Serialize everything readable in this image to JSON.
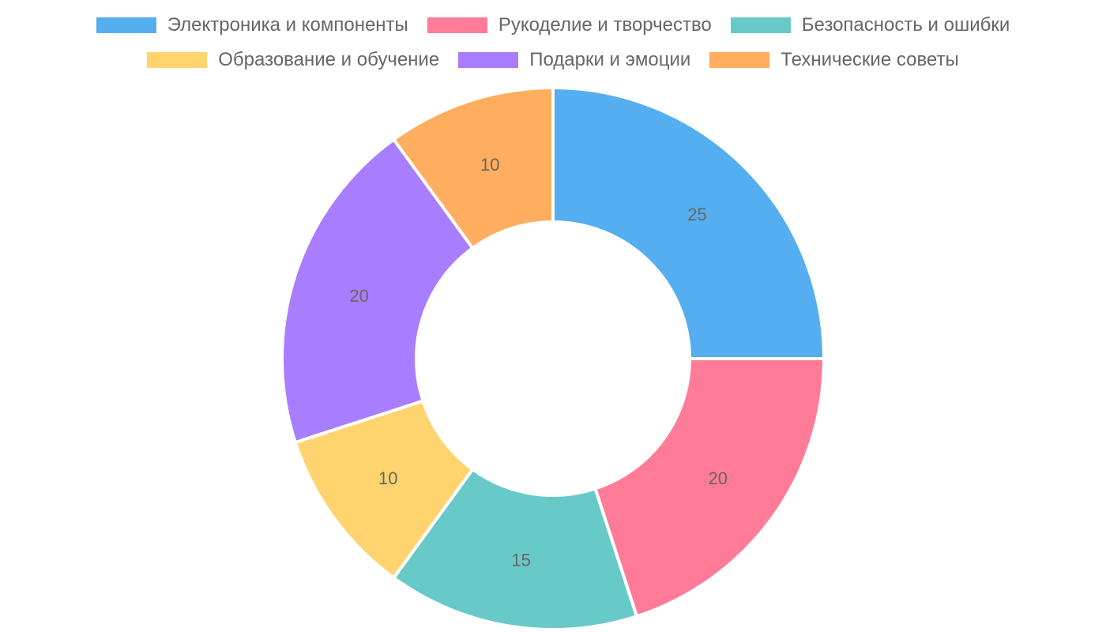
{
  "chart_data": {
    "type": "pie",
    "subtype": "doughnut",
    "legend_position": "top",
    "slices": [
      {
        "label": "Электроника и компоненты",
        "value": 25,
        "color": "#54aeef"
      },
      {
        "label": "Рукоделие и творчество",
        "value": 20,
        "color": "#ff7b97"
      },
      {
        "label": "Безопасность и ошибки",
        "value": 15,
        "color": "#67c9c8"
      },
      {
        "label": "Образование и обучение",
        "value": 10,
        "color": "#ffd46f"
      },
      {
        "label": "Подарки и эмоции",
        "value": 20,
        "color": "#a87dff"
      },
      {
        "label": "Технические советы",
        "value": 10,
        "color": "#ffad5e"
      }
    ]
  }
}
